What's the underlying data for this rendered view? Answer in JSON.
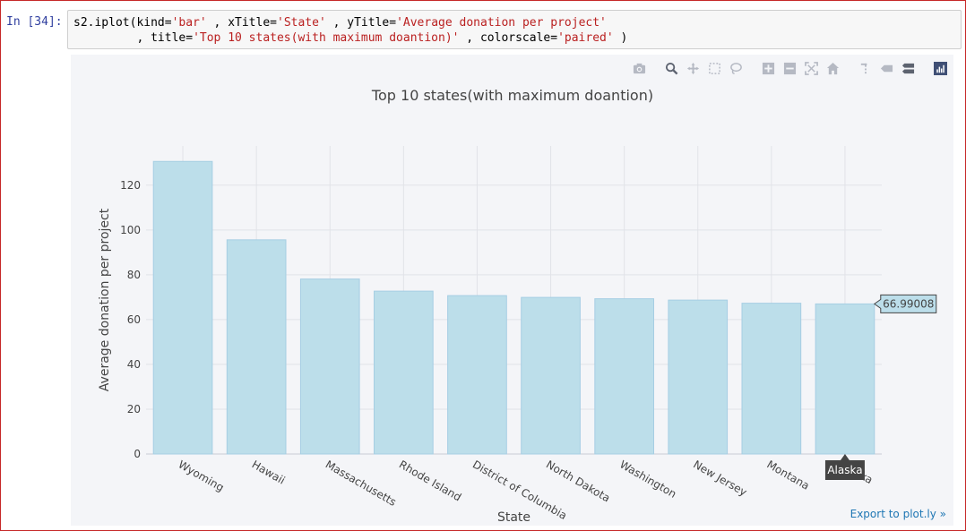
{
  "cell": {
    "prompt": "In [34]:",
    "code_parts": [
      {
        "text": "s2.iplot(kind=",
        "str": false
      },
      {
        "text": "'bar'",
        "str": true
      },
      {
        "text": " , xTitle=",
        "str": false
      },
      {
        "text": "'State'",
        "str": true
      },
      {
        "text": " , yTitle=",
        "str": false
      },
      {
        "text": "'Average donation per project'",
        "str": true
      },
      {
        "text": "\n         , title=",
        "str": false
      },
      {
        "text": "'Top 10 states(with maximum doantion)'",
        "str": true
      },
      {
        "text": " , colorscale=",
        "str": false
      },
      {
        "text": "'paired'",
        "str": true
      },
      {
        "text": " )",
        "str": false
      }
    ]
  },
  "modebar": {
    "icons": [
      "camera-icon",
      "zoom-icon",
      "pan-icon",
      "box-select-icon",
      "lasso-icon",
      "zoom-in-icon",
      "zoom-out-icon",
      "autoscale-icon",
      "reset-axes-icon",
      "spike-lines-icon",
      "hover-closest-icon",
      "hover-compare-icon",
      "plotly-logo-icon"
    ]
  },
  "export_link": "Export to plot.ly »",
  "colors": {
    "bar_fill": "#bcdeea",
    "bar_stroke": "#a6cee3",
    "grid": "#e1e3e8",
    "hover_box": "#bcdeea",
    "hover_label_bg": "#444444"
  },
  "chart_data": {
    "type": "bar",
    "title": "Top 10 states(with maximum doantion)",
    "xlabel": "State",
    "ylabel": "Average donation per project",
    "categories": [
      "Wyoming",
      "Hawaii",
      "Massachusetts",
      "Rhode Island",
      "District of Columbia",
      "North Dakota",
      "Washington",
      "New Jersey",
      "Montana",
      "Alaska"
    ],
    "values": [
      130.6,
      95.6,
      78.1,
      72.7,
      70.7,
      69.9,
      69.3,
      68.7,
      67.3,
      66.99008
    ],
    "ylim": [
      0,
      137.5
    ],
    "yticks": [
      0,
      20,
      40,
      60,
      80,
      100,
      120
    ],
    "grid": true,
    "hover": {
      "category": "Alaska",
      "value_label": "66.99008",
      "category_label": "Alaska"
    }
  }
}
